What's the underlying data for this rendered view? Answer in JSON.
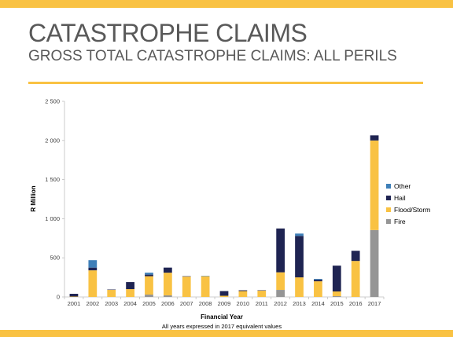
{
  "slide": {
    "title": "CATASTROPHE CLAIMS",
    "subtitle": "GROSS TOTAL CATASTROPHE CLAIMS: ALL PERILS",
    "note": "All years expressed in 2017 equivalent values"
  },
  "colors": {
    "accent": "#f9c243",
    "fire": "#959595",
    "flood_storm": "#f9c243",
    "hail": "#1f2452",
    "other": "#3e7fb8"
  },
  "chart_data": {
    "type": "bar",
    "stacked": true,
    "categories": [
      "2001",
      "2002",
      "2003",
      "2004",
      "2005",
      "2006",
      "2007",
      "2008",
      "2009",
      "2010",
      "2011",
      "2012",
      "2013",
      "2014",
      "2015",
      "2016",
      "2017"
    ],
    "series": [
      {
        "name": "Fire",
        "color": "#959595",
        "values": [
          0,
          0,
          0,
          0,
          30,
          20,
          0,
          0,
          0,
          0,
          0,
          90,
          0,
          0,
          10,
          0,
          855
        ]
      },
      {
        "name": "Flood/Storm",
        "color": "#f9c243",
        "values": [
          5,
          340,
          90,
          100,
          235,
          290,
          260,
          265,
          15,
          75,
          80,
          225,
          250,
          200,
          60,
          460,
          1145
        ]
      },
      {
        "name": "Hail",
        "color": "#1f2452",
        "values": [
          35,
          35,
          5,
          90,
          20,
          65,
          5,
          0,
          60,
          10,
          5,
          560,
          530,
          20,
          330,
          130,
          65
        ]
      },
      {
        "name": "Other",
        "color": "#3e7fb8",
        "values": [
          0,
          95,
          0,
          0,
          25,
          0,
          0,
          5,
          0,
          0,
          0,
          0,
          30,
          10,
          0,
          0,
          0
        ]
      }
    ],
    "legend": [
      "Other",
      "Hail",
      "Flood/Storm",
      "Fire"
    ],
    "legend_position": "right",
    "xlabel": "Financial Year",
    "ylabel": "R Million",
    "ylim": [
      0,
      2500
    ],
    "yticks": [
      "0",
      "500",
      "1 000",
      "1 500",
      "2 000",
      "2 500"
    ],
    "grid": false
  }
}
